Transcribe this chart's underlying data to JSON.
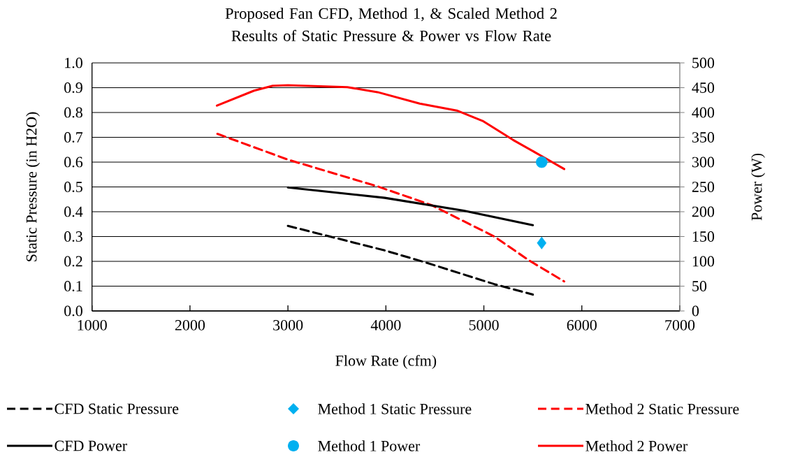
{
  "chart_data": {
    "type": "line",
    "title": "Proposed Fan CFD, Method 1, & Scaled Method 2 Results of Static Pressure & Power vs Flow Rate",
    "xlabel": "Flow Rate (cfm)",
    "ylabel": "Static Pressure (in H2O)",
    "y2label": "Power (W)",
    "xlim": [
      1000,
      7000
    ],
    "xticks": [
      1000,
      2000,
      3000,
      4000,
      5000,
      6000,
      7000
    ],
    "ylim": [
      0,
      1
    ],
    "yticks": [
      {
        "value": 0,
        "label": "0.0"
      },
      0.1,
      0.2,
      0.3,
      0.4,
      0.5,
      0.6,
      0.7,
      0.8,
      0.9,
      {
        "value": 1,
        "label": "1.0"
      }
    ],
    "y2lim": [
      0,
      500
    ],
    "y2ticks": [
      0,
      50,
      100,
      150,
      200,
      250,
      300,
      350,
      400,
      450,
      500
    ],
    "grid": "y",
    "legend": "bottom",
    "series": [
      {
        "name": "CFD Static Pressure",
        "type": "line",
        "line_style": "dashed",
        "color": "#000000",
        "x": [
          3000,
          3988,
          4393,
          5107,
          5500
        ],
        "values": [
          0.343,
          0.244,
          0.197,
          0.108,
          0.066
        ]
      },
      {
        "name": "CFD Power",
        "type": "line",
        "line_style": "solid",
        "axis": "y2",
        "color": "#000000",
        "x": [
          3000,
          3988,
          4795,
          5500
        ],
        "values": [
          249,
          228,
          202,
          173
        ]
      },
      {
        "name": "Method 1 Static Pressure",
        "type": "scatter",
        "marker": "diamond",
        "color": "#00b0f0",
        "x": [
          5590
        ],
        "values": [
          0.274
        ]
      },
      {
        "name": "Method 1 Power",
        "type": "scatter",
        "marker": "circle",
        "axis": "y2",
        "color": "#00b0f0",
        "x": [
          5590
        ],
        "values": [
          300
        ]
      },
      {
        "name": "Method 2 Static Pressure",
        "type": "line",
        "line_style": "dashed",
        "color": "#ff0000",
        "x": [
          2280,
          3000,
          3916,
          4464,
          5107,
          5464,
          5820
        ],
        "values": [
          0.714,
          0.61,
          0.502,
          0.427,
          0.3,
          0.203,
          0.119
        ]
      },
      {
        "name": "Method 2 Power",
        "type": "line",
        "line_style": "solid",
        "axis": "y2",
        "color": "#ff0000",
        "x": [
          2275,
          2654,
          2845,
          3000,
          3607,
          3916,
          4345,
          4724,
          4988,
          5296,
          5582,
          5820
        ],
        "values": [
          414,
          444,
          454,
          455,
          451,
          441,
          418,
          404,
          383,
          345,
          313,
          286
        ]
      }
    ]
  }
}
